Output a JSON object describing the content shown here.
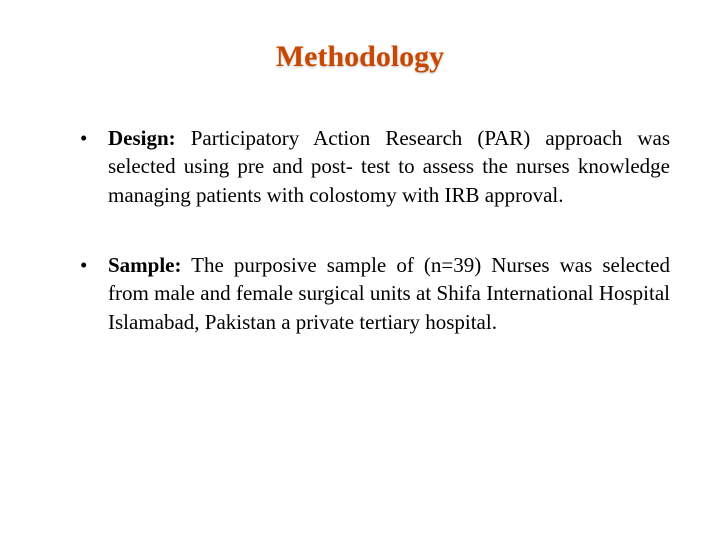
{
  "title": {
    "text": "Methodology",
    "color": "#c94700",
    "fontsize": 30
  },
  "body": {
    "fontsize": 21,
    "line_height": 1.35,
    "text_color": "#000000"
  },
  "bullets": [
    {
      "label": "Design:",
      "text": " Participatory Action Research (PAR) approach was selected using pre and post- test to assess the nurses knowledge managing patients with colostomy with IRB approval."
    },
    {
      "label": "Sample:",
      "text": " The purposive sample of (n=39) Nurses was selected from male and female surgical units  at Shifa International Hospital Islamabad, Pakistan a private tertiary hospital."
    }
  ],
  "background_color": "#ffffff"
}
